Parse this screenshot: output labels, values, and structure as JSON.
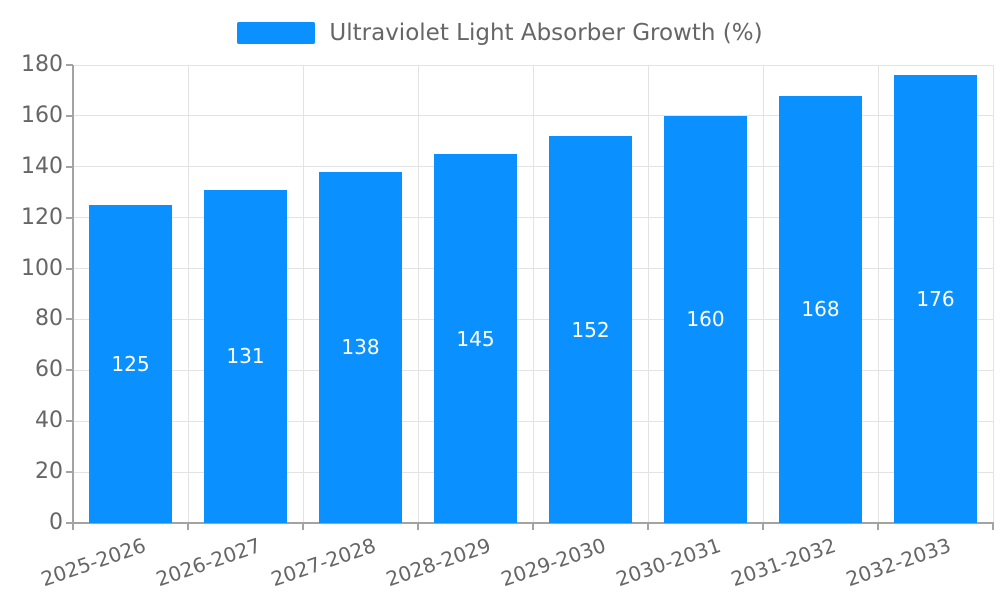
{
  "chart_data": {
    "type": "bar",
    "title": "Ultraviolet Light Absorber Growth (%)",
    "legend": {
      "position": "top",
      "entries": [
        "Ultraviolet Light Absorber Growth (%)"
      ]
    },
    "categories": [
      "2025-2026",
      "2026-2027",
      "2027-2028",
      "2028-2029",
      "2029-2030",
      "2030-2031",
      "2031-2032",
      "2032-2033"
    ],
    "values": [
      125,
      131,
      138,
      145,
      152,
      160,
      168,
      176
    ],
    "bar_value_labels": [
      "125",
      "131",
      "138",
      "145",
      "152",
      "160",
      "168",
      "176"
    ],
    "xlabel": "",
    "ylabel": "",
    "ylim": [
      0,
      180
    ],
    "ytick_step": 20,
    "yticks": [
      0,
      20,
      40,
      60,
      80,
      100,
      120,
      140,
      160,
      180
    ],
    "grid": {
      "horizontal": true,
      "vertical": true
    },
    "colors": {
      "bar": "#0b90ff",
      "grid": "#e3e3e3",
      "axis": "#a3a3a3",
      "tick_text": "#666666",
      "bar_label_text": "#ffffff",
      "background": "#ffffff"
    }
  }
}
